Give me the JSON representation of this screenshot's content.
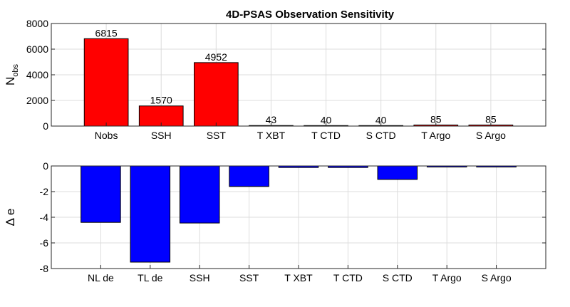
{
  "title": "4D-PSAS Observation Sensitivity",
  "colors": {
    "top_bar": "#ff0000",
    "bottom_bar": "#0000ff"
  },
  "chart_data": [
    {
      "type": "bar",
      "categories": [
        "Nobs",
        "SSH",
        "SST",
        "T XBT",
        "T CTD",
        "S CTD",
        "T Argo",
        "S Argo"
      ],
      "values": [
        6815,
        1570,
        4952,
        43,
        40,
        40,
        85,
        85
      ],
      "data_labels": [
        "6815",
        "1570",
        "4952",
        "43",
        "40",
        "40",
        "85",
        "85"
      ],
      "ylabel": "N",
      "ylabel_subscript": "obs",
      "ylim": [
        0,
        8000
      ],
      "yticks": [
        0,
        2000,
        4000,
        6000,
        8000
      ],
      "ytick_labels": [
        "0",
        "2000",
        "4000",
        "6000",
        "8000"
      ],
      "grid": true
    },
    {
      "type": "bar",
      "categories": [
        "NL de",
        "TL de",
        "SSH",
        "SST",
        "T XBT",
        "T CTD",
        "S CTD",
        "T Argo",
        "S Argo"
      ],
      "values": [
        -4.4,
        -7.5,
        -4.45,
        -1.6,
        -0.12,
        -0.12,
        -1.05,
        -0.08,
        -0.08
      ],
      "ylabel": "Δ e",
      "ylim": [
        -8,
        0
      ],
      "yticks": [
        -8,
        -6,
        -4,
        -2,
        0
      ],
      "ytick_labels": [
        "-8",
        "-6",
        "-4",
        "-2",
        "0"
      ],
      "grid": true
    }
  ]
}
